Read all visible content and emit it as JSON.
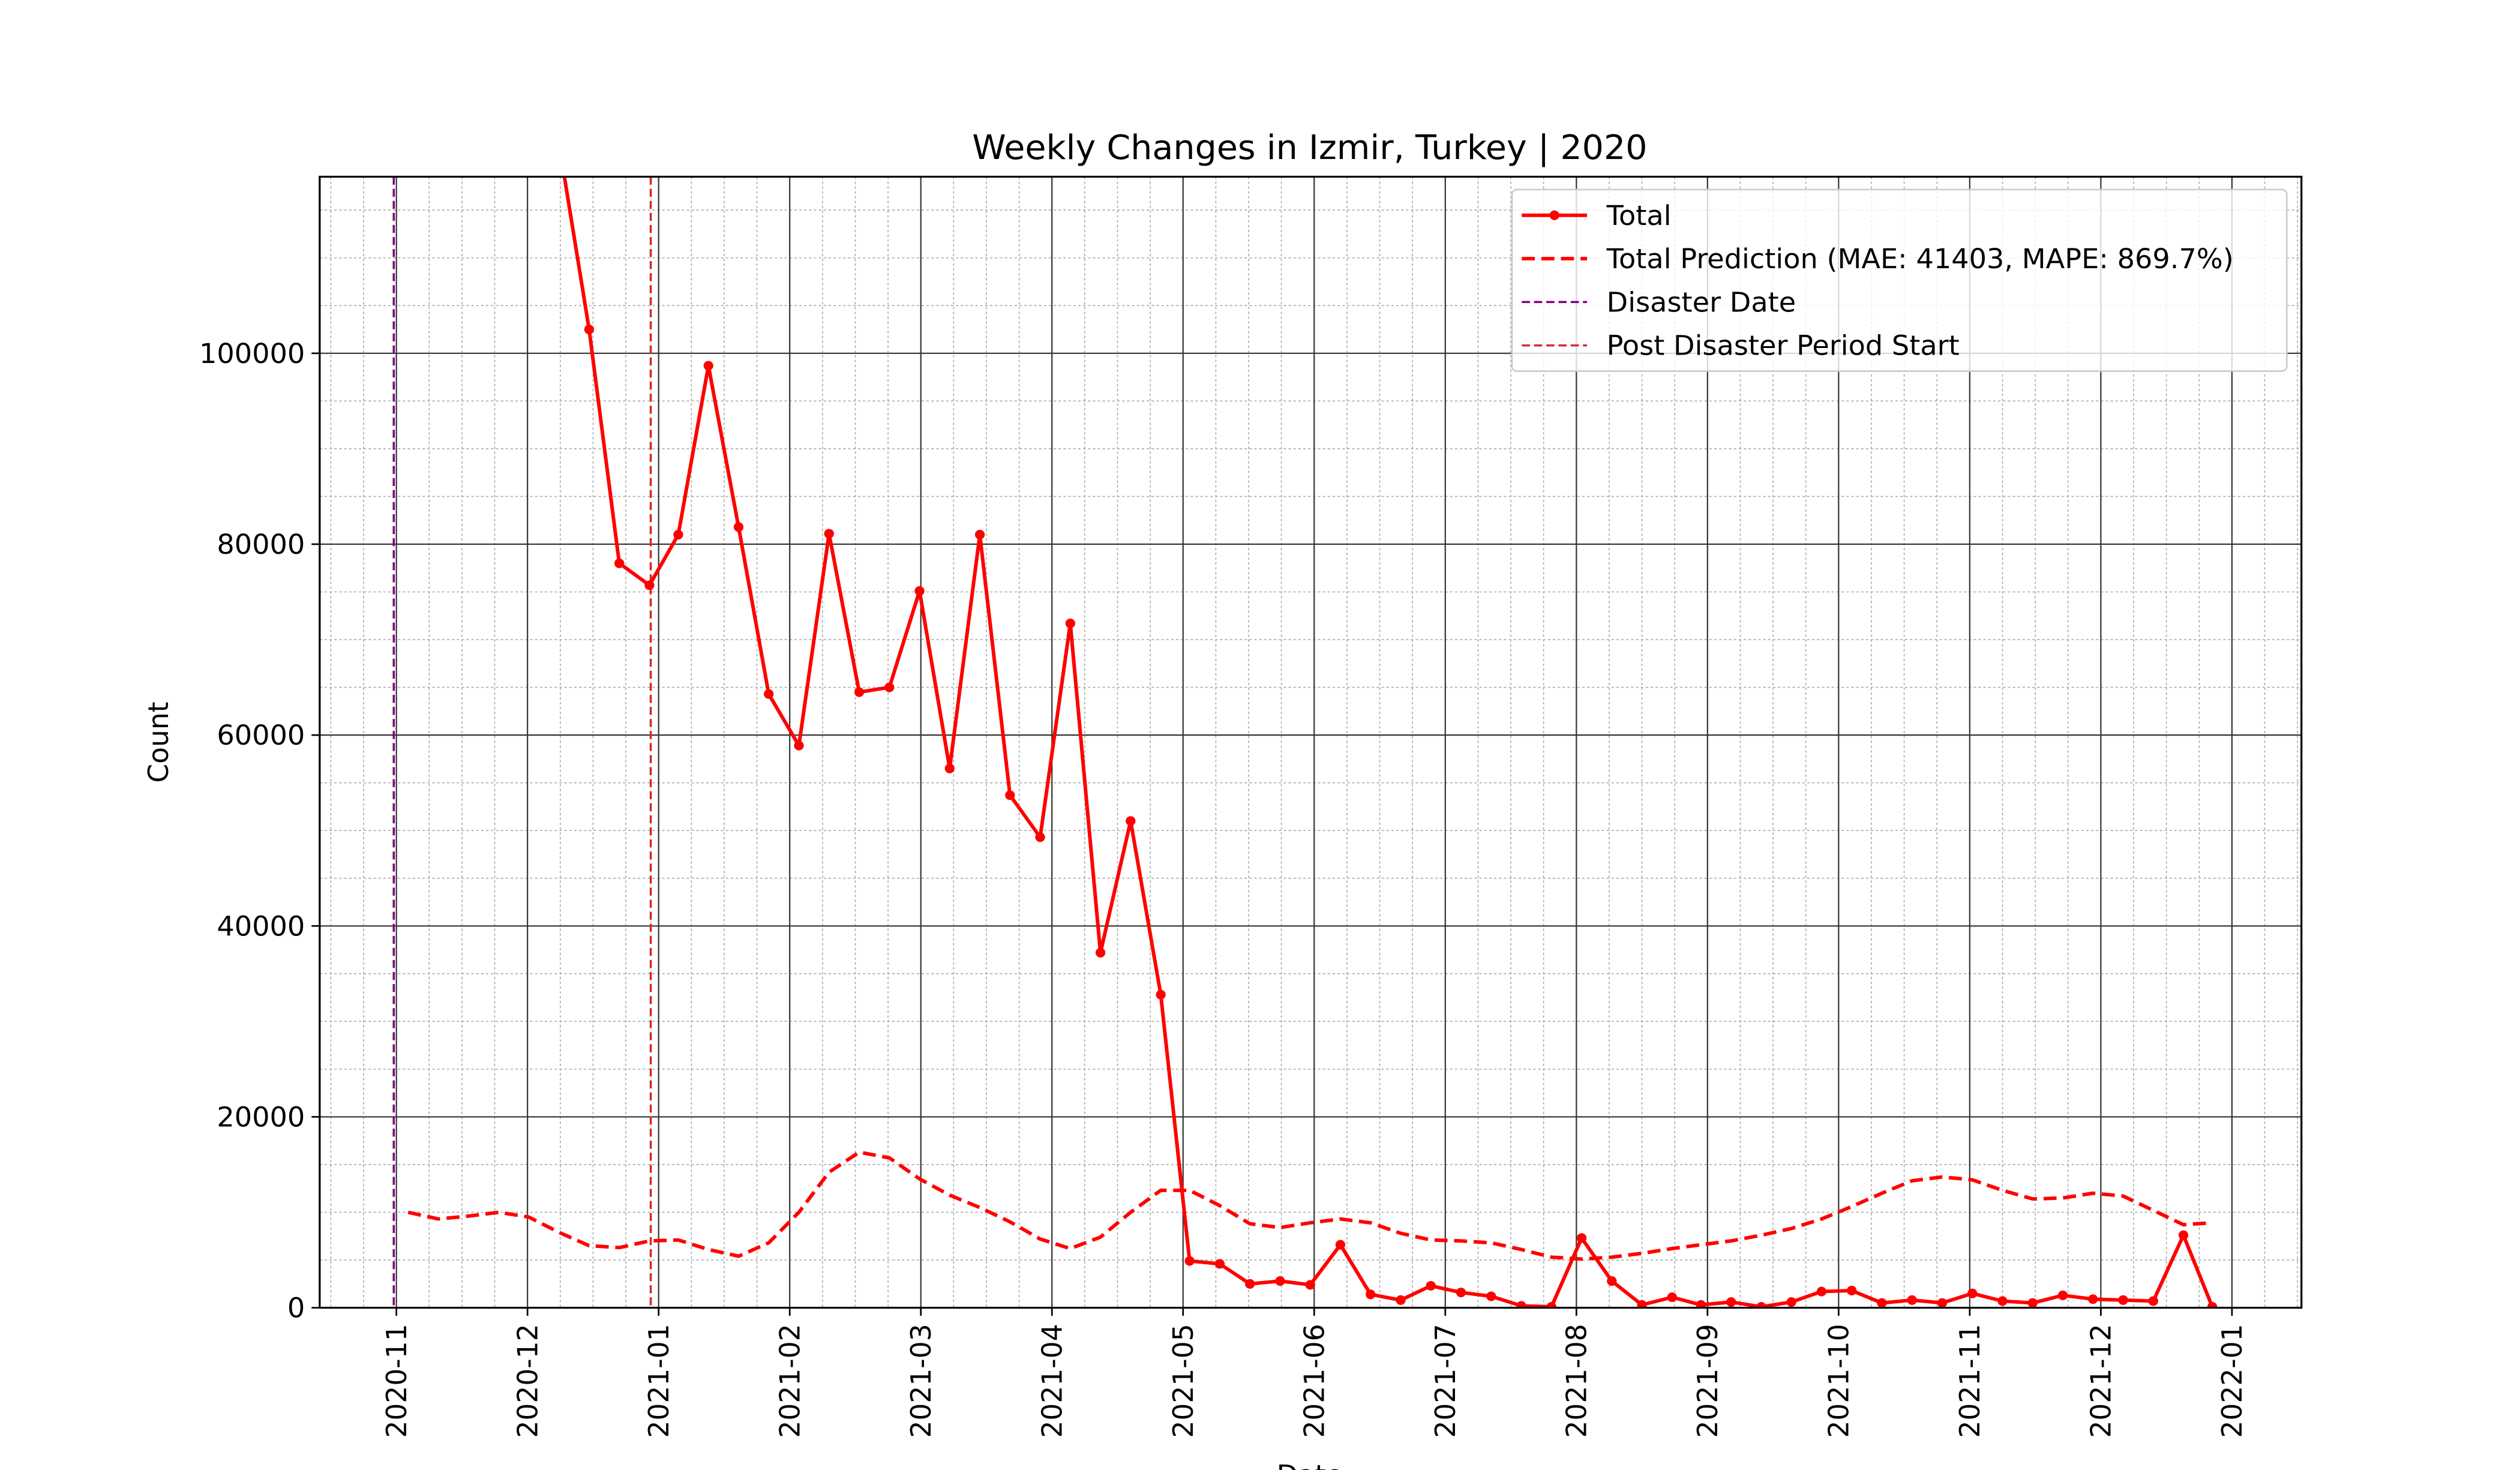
{
  "chart_data": {
    "type": "line",
    "title": "Weekly Changes in Izmir, Turkey | 2020",
    "x_label": "Date",
    "y_label": "Count",
    "x": [
      0.09,
      0.32,
      0.55,
      0.78,
      1.01,
      1.24,
      1.47,
      1.7,
      1.93,
      2.15,
      2.38,
      2.61,
      2.84,
      3.07,
      3.3,
      3.53,
      3.76,
      3.99,
      4.22,
      4.45,
      4.68,
      4.91,
      5.14,
      5.37,
      5.6,
      5.83,
      6.05,
      6.28,
      6.51,
      6.74,
      6.97,
      7.2,
      7.43,
      7.66,
      7.89,
      8.12,
      8.35,
      8.58,
      8.81,
      9.04,
      9.27,
      9.5,
      9.73,
      9.95,
      10.18,
      10.41,
      10.64,
      10.87,
      11.1,
      11.33,
      11.56,
      11.79,
      12.02,
      12.25,
      12.48,
      12.71,
      12.94,
      13.17,
      13.4,
      13.63,
      13.85
    ],
    "series": [
      {
        "name": "Total",
        "color": "#ff0000",
        "linestyle": "solid",
        "marker": true,
        "values": [
          null,
          null,
          null,
          null,
          null,
          122000,
          102500,
          78000,
          75700,
          81000,
          98700,
          81800,
          64300,
          58900,
          81100,
          64500,
          65000,
          75100,
          56500,
          81000,
          53700,
          49300,
          71700,
          37200,
          51000,
          32800,
          4900,
          4600,
          2500,
          2800,
          2400,
          6600,
          1400,
          800,
          2300,
          1600,
          1200,
          200,
          100,
          7300,
          2800,
          300,
          1100,
          300,
          600,
          100,
          600,
          1700,
          1800,
          500,
          800,
          500,
          1500,
          700,
          500,
          1300,
          900,
          800,
          700,
          7600,
          100
        ]
      },
      {
        "name": "Total Prediction (MAE: 41403, MAPE: 869.7%)",
        "color": "#ff0000",
        "linestyle": "dashed",
        "marker": false,
        "values": [
          10000,
          9300,
          9600,
          10000,
          9500,
          7900,
          6500,
          6300,
          7000,
          7100,
          6100,
          5400,
          6800,
          10000,
          14200,
          16300,
          15700,
          13500,
          11800,
          10500,
          9000,
          7200,
          6200,
          7400,
          10000,
          12300,
          12300,
          10700,
          8800,
          8400,
          8900,
          9300,
          8900,
          7800,
          7100,
          7000,
          6800,
          6100,
          5300,
          5100,
          5300,
          5700,
          6200,
          6600,
          7000,
          7600,
          8300,
          9300,
          10600,
          12000,
          13300,
          13700,
          13400,
          12300,
          11400,
          11500,
          12000,
          11700,
          10200,
          8700,
          8900
        ]
      }
    ],
    "vlines": [
      {
        "name": "Disaster Date",
        "color": "#800080",
        "x": -0.02
      },
      {
        "name": "Post Disaster Period Start",
        "color": "#d62728",
        "x": 1.94
      }
    ],
    "xlim": [
      -0.585,
      14.53
    ],
    "ylim": [
      0,
      118500
    ],
    "xticks": [
      {
        "value": 0,
        "label": "2020-11"
      },
      {
        "value": 1,
        "label": "2020-12"
      },
      {
        "value": 2,
        "label": "2021-01"
      },
      {
        "value": 3,
        "label": "2021-02"
      },
      {
        "value": 4,
        "label": "2021-03"
      },
      {
        "value": 5,
        "label": "2021-04"
      },
      {
        "value": 6,
        "label": "2021-05"
      },
      {
        "value": 7,
        "label": "2021-06"
      },
      {
        "value": 8,
        "label": "2021-07"
      },
      {
        "value": 9,
        "label": "2021-08"
      },
      {
        "value": 10,
        "label": "2021-09"
      },
      {
        "value": 11,
        "label": "2021-10"
      },
      {
        "value": 12,
        "label": "2021-11"
      },
      {
        "value": 13,
        "label": "2021-12"
      },
      {
        "value": 14,
        "label": "2022-01"
      }
    ],
    "yticks": [
      0,
      20000,
      40000,
      60000,
      80000,
      100000
    ],
    "grid": true,
    "legend": "upper right"
  }
}
